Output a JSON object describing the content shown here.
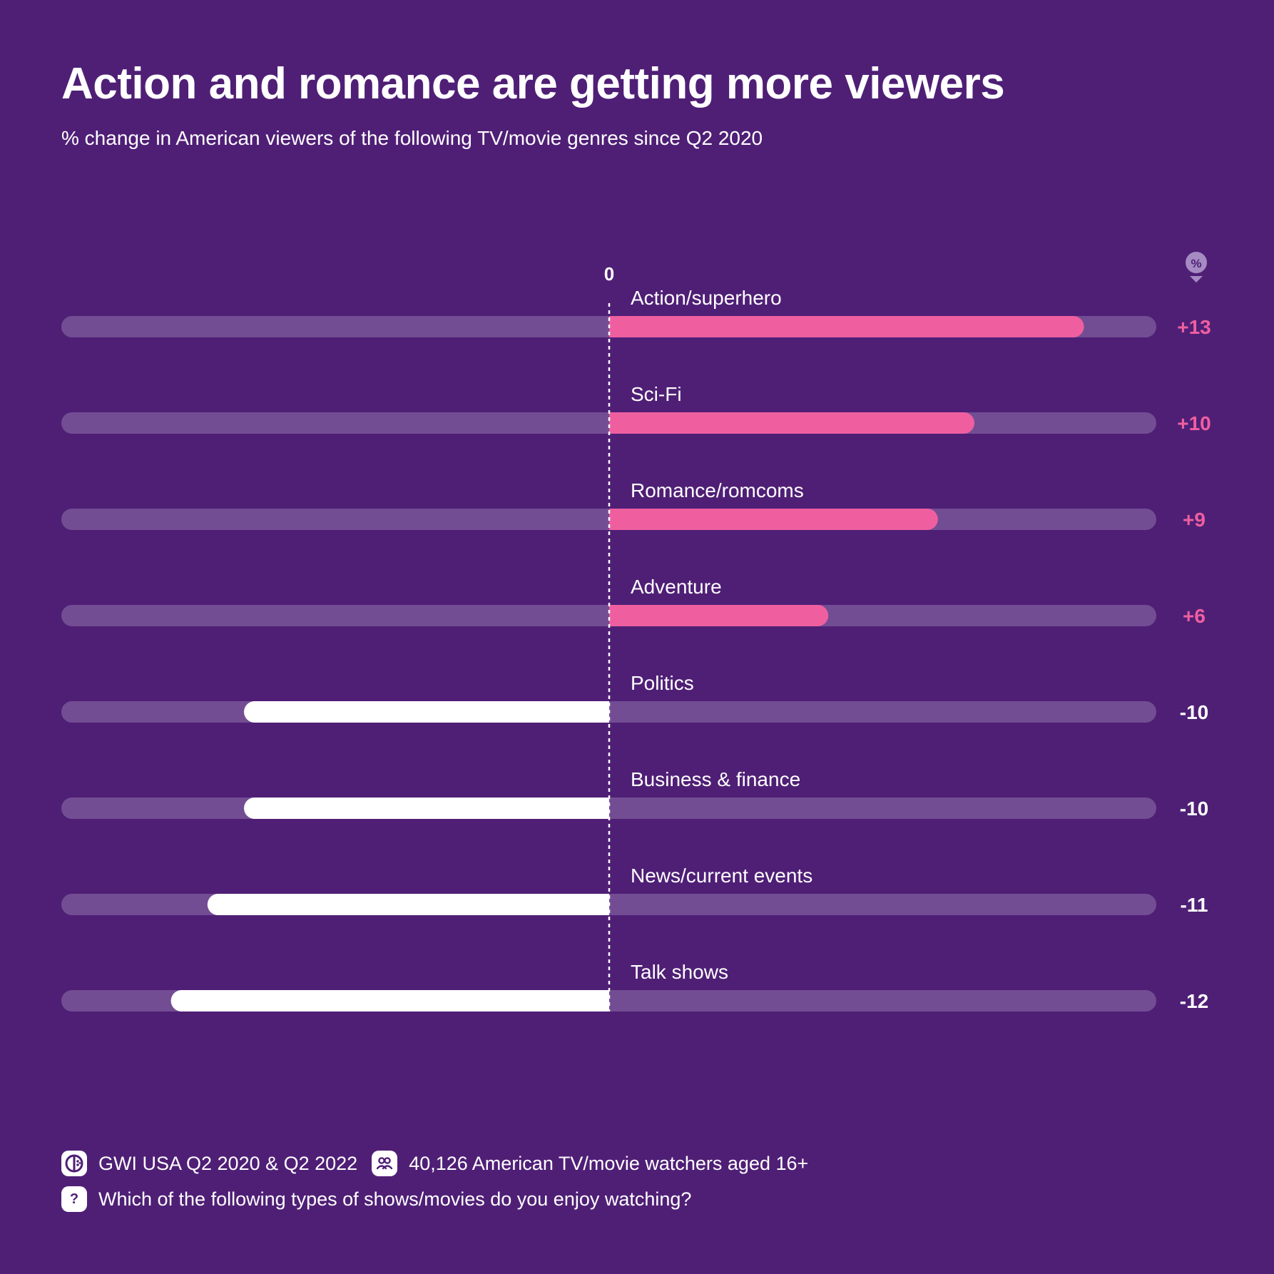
{
  "title": "Action and romance are getting more viewers",
  "subtitle": "% change in American viewers of the following TV/movie genres since Q2 2020",
  "colors": {
    "background": "#4f1f76",
    "track": "#734d93",
    "positive": "#ef5fa0",
    "negative": "#ffffff",
    "text": "#ffffff"
  },
  "chart_data": {
    "type": "bar",
    "orientation": "horizontal",
    "zero_label": "0",
    "unit_badge": "%",
    "xlim": [
      -15,
      15
    ],
    "categories": [
      "Action/superhero",
      "Sci-Fi",
      "Romance/romcoms",
      "Adventure",
      "Politics",
      "Business & finance",
      "News/current events",
      "Talk shows"
    ],
    "values": [
      13,
      10,
      9,
      6,
      -10,
      -10,
      -11,
      -12
    ],
    "value_labels": [
      "+13",
      "+10",
      "+9",
      "+6",
      "-10",
      "-10",
      "-11",
      "-12"
    ]
  },
  "footer": {
    "source_icon": "gwi-logo-icon",
    "source": "GWI USA Q2 2020 & Q2 2022",
    "sample_icon": "people-icon",
    "sample": "40,126 American TV/movie watchers aged 16+",
    "question_icon": "question-icon",
    "question_mark": "?",
    "question": "Which of the following types of shows/movies do you enjoy watching?"
  }
}
